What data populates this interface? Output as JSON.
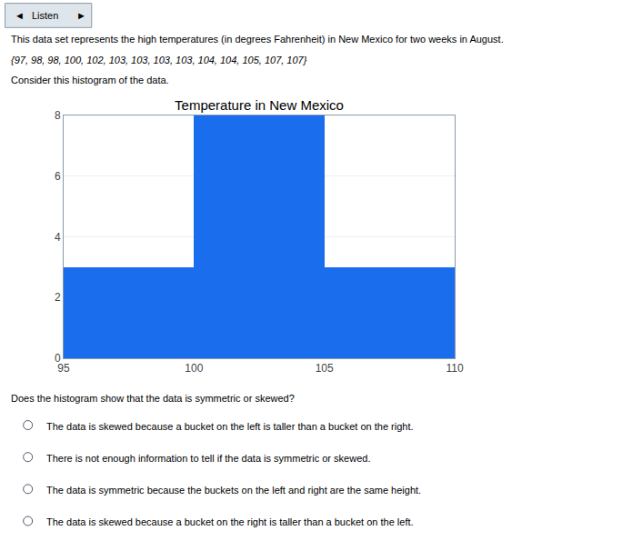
{
  "chart_data": {
    "type": "histogram",
    "title": "Temperature in New Mexico",
    "bins": [
      95,
      100,
      105,
      110
    ],
    "values": [
      3,
      8,
      3
    ],
    "color": "#1a6eee",
    "xlim": [
      95,
      110
    ],
    "xticks": [
      95,
      100,
      105,
      110
    ],
    "ylim": [
      0,
      8
    ],
    "yticks": [
      0,
      2,
      4,
      6,
      8
    ],
    "grid": true,
    "annotations": [
      "◄",
      "Listen",
      "►",
      "This data set represents the high temperatures (in degrees Fahrenheit) in New Mexico for two weeks in August.",
      "{97, 98, 98, 100, 102, 103, 103, 103, 103, 104, 104, 105, 107, 107}",
      "Consider this histogram of the data.",
      "Does the histogram show that the data is symmetric or skewed?",
      "The data is skewed because a bucket on the left is taller than a bucket on the right.",
      "There is not enough information to tell if the data is symmetric or skewed.",
      "The data is symmetric because the buckets on the left and right are the same height.",
      "The data is skewed because a bucket on the right is taller than a bucket on the left."
    ]
  }
}
